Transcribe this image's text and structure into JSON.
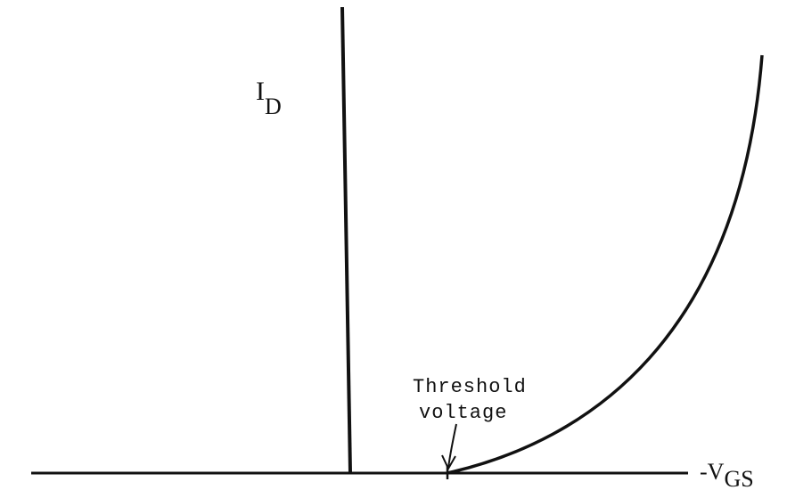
{
  "diagram": {
    "y_axis_label": {
      "text": "I",
      "subscript": "D"
    },
    "x_axis_label": {
      "text": "-V",
      "subscript": "GS"
    },
    "annotation": {
      "lines": [
        "Threshold",
        "voltage"
      ]
    }
  }
}
